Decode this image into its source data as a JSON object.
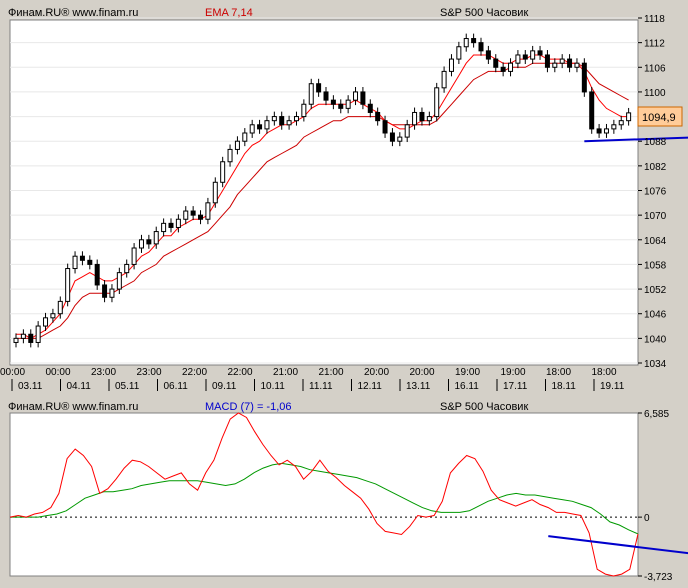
{
  "top_panel": {
    "source": "Финам.RU® www.finam.ru",
    "indicator": "EMA 7,14",
    "title": "S&P 500 Часовик",
    "last_price_label": "1094,9",
    "y_ticks": [
      "1118",
      "1112",
      "1106",
      "1100",
      "1094",
      "1088",
      "1082",
      "1076",
      "1070",
      "1064",
      "1058",
      "1052",
      "1046",
      "1040",
      "1034"
    ],
    "x_time_labels": [
      "00:00",
      "00:00",
      "23:00",
      "23:00",
      "22:00",
      "22:00",
      "21:00",
      "21:00",
      "20:00",
      "20:00",
      "19:00",
      "19:00",
      "18:00",
      "18:00"
    ],
    "x_date_labels": [
      "03.11",
      "04.11",
      "05.11",
      "06.11",
      "09.11",
      "10.11",
      "11.11",
      "12.11",
      "13.11",
      "16.11",
      "17.11",
      "18.11",
      "19.11"
    ]
  },
  "bottom_panel": {
    "source": "Финам.RU® www.finam.ru",
    "indicator": "MACD (7) = -1,06",
    "title": "S&P 500 Часовик",
    "y_ticks": [
      "6,585",
      "0",
      "-3,723"
    ]
  },
  "colors": {
    "background": "#ffffff",
    "frame": "#d4d0c8",
    "ema_fast": "#ff0000",
    "ema_slow": "#cc0000",
    "macd": "#ff0000",
    "signal": "#009900",
    "trendline": "#0000cc",
    "price_box": "#ffcc99"
  },
  "chart_data": [
    {
      "type": "candlestick",
      "title": "S&P 500 Часовик",
      "ylim": [
        1034,
        1118
      ],
      "closes": [
        1040,
        1041,
        1039,
        1043,
        1045,
        1046,
        1049,
        1057,
        1060,
        1059,
        1058,
        1053,
        1050,
        1052,
        1056,
        1058,
        1062,
        1064,
        1063,
        1066,
        1068,
        1067,
        1069,
        1071,
        1070,
        1069,
        1073,
        1078,
        1083,
        1086,
        1088,
        1090,
        1092,
        1091,
        1093,
        1094,
        1092,
        1093,
        1094,
        1097,
        1102,
        1100,
        1098,
        1097,
        1096,
        1098,
        1100,
        1097,
        1095,
        1093,
        1090,
        1088,
        1089,
        1092,
        1095,
        1093,
        1094,
        1101,
        1105,
        1108,
        1111,
        1113,
        1112,
        1110,
        1108,
        1106,
        1105,
        1107,
        1109,
        1108,
        1110,
        1109,
        1106,
        1107,
        1108,
        1106,
        1107,
        1100,
        1091,
        1090,
        1091,
        1092,
        1093,
        1094.9
      ],
      "ema_fast": [
        1041,
        1041,
        1040,
        1041,
        1042,
        1044,
        1046,
        1050,
        1054,
        1055,
        1056,
        1055,
        1054,
        1054,
        1055,
        1056,
        1058,
        1060,
        1061,
        1063,
        1065,
        1065,
        1067,
        1068,
        1069,
        1069,
        1070,
        1073,
        1076,
        1079,
        1082,
        1085,
        1087,
        1088,
        1090,
        1091,
        1092,
        1092,
        1093,
        1094,
        1096,
        1097,
        1097,
        1097,
        1097,
        1097,
        1098,
        1097,
        1096,
        1095,
        1093,
        1092,
        1091,
        1091,
        1092,
        1093,
        1093,
        1095,
        1098,
        1101,
        1104,
        1107,
        1109,
        1109,
        1109,
        1108,
        1107,
        1107,
        1108,
        1108,
        1109,
        1109,
        1108,
        1108,
        1108,
        1107,
        1107,
        1105,
        1101,
        1098,
        1096,
        1095,
        1094,
        1094
      ],
      "ema_slow": [
        1040,
        1040,
        1040,
        1040,
        1041,
        1042,
        1043,
        1045,
        1048,
        1050,
        1051,
        1051,
        1051,
        1051,
        1052,
        1053,
        1054,
        1056,
        1057,
        1058,
        1060,
        1061,
        1062,
        1063,
        1064,
        1065,
        1066,
        1068,
        1070,
        1072,
        1075,
        1077,
        1079,
        1081,
        1083,
        1084,
        1085,
        1086,
        1087,
        1089,
        1090,
        1091,
        1092,
        1093,
        1093,
        1094,
        1094,
        1094,
        1094,
        1094,
        1093,
        1092,
        1092,
        1092,
        1092,
        1092,
        1092,
        1093,
        1095,
        1097,
        1099,
        1101,
        1103,
        1104,
        1105,
        1105,
        1105,
        1106,
        1106,
        1106,
        1107,
        1107,
        1107,
        1107,
        1107,
        1107,
        1107,
        1106,
        1104,
        1102,
        1101,
        1100,
        1099,
        1098
      ],
      "trendline": {
        "x": [
          77,
          101
        ],
        "y": [
          1088,
          1089.5
        ]
      }
    },
    {
      "type": "line",
      "title": "S&P 500 Часовик",
      "ylim": [
        -3.723,
        6.585
      ],
      "series": [
        {
          "name": "MACD (7)",
          "values": [
            0,
            0.1,
            0,
            0.2,
            0.3,
            0.6,
            1.5,
            3.7,
            4.3,
            3.9,
            3.2,
            1.5,
            1.8,
            2.4,
            3.1,
            3.6,
            3.5,
            3.2,
            2.8,
            2.4,
            2.6,
            2.8,
            2.1,
            1.7,
            2.8,
            3.6,
            5.0,
            6.2,
            6.585,
            6.3,
            5.4,
            4.6,
            3.9,
            3.3,
            3.6,
            3.2,
            2.4,
            2.9,
            3.6,
            2.9,
            2.5,
            2.0,
            1.6,
            1.2,
            0.5,
            -0.4,
            -0.9,
            -1.0,
            -1.1,
            -0.6,
            0.1,
            0.0,
            0.1,
            1.0,
            2.8,
            3.4,
            3.9,
            3.7,
            2.9,
            1.7,
            1.1,
            0.9,
            0.7,
            0.9,
            1.1,
            0.8,
            0.6,
            0.3,
            0.3,
            0.2,
            0.1,
            -1.0,
            -3.3,
            -3.6,
            -3.723,
            -3.6,
            -3.3,
            -1.06
          ]
        },
        {
          "name": "Signal",
          "values": [
            0,
            0,
            0,
            0,
            0.1,
            0.2,
            0.4,
            0.8,
            1.2,
            1.4,
            1.6,
            1.6,
            1.7,
            1.8,
            2.0,
            2.1,
            2.2,
            2.3,
            2.3,
            2.3,
            2.3,
            2.2,
            2.1,
            2.0,
            2.1,
            2.4,
            2.8,
            3.1,
            3.3,
            3.4,
            3.3,
            3.2,
            3.0,
            2.9,
            2.8,
            2.7,
            2.6,
            2.5,
            2.3,
            2.1,
            1.8,
            1.5,
            1.2,
            0.9,
            0.6,
            0.4,
            0.3,
            0.3,
            0.3,
            0.4,
            0.7,
            1.0,
            1.2,
            1.4,
            1.5,
            1.4,
            1.4,
            1.3,
            1.2,
            1.1,
            1.0,
            0.8,
            0.6,
            0.2,
            -0.3,
            -0.5,
            -0.8,
            -1.06
          ]
        }
      ],
      "trendline": {
        "x": [
          66,
          106
        ],
        "y": [
          -1.2,
          -3.72
        ]
      }
    }
  ]
}
